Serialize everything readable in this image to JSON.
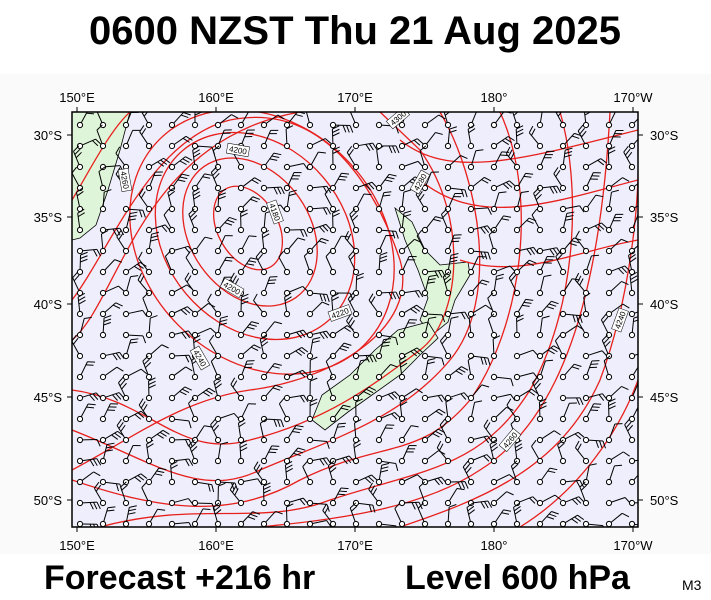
{
  "title": "0600 NZST Thu 21 Aug 2025",
  "footer": {
    "forecast": "Forecast +216 hr",
    "level": "Level 600 hPa",
    "code": "M3"
  },
  "lon_labels": [
    "150°E",
    "160°E",
    "170°E",
    "180°",
    "170°W"
  ],
  "lat_labels": [
    "30°S",
    "35°S",
    "40°S",
    "45°S",
    "50°S"
  ],
  "contour_labels": [
    "4180",
    "4200",
    "4200",
    "4220",
    "4240",
    "4240",
    "4260",
    "4260",
    "4280",
    "4300"
  ]
}
